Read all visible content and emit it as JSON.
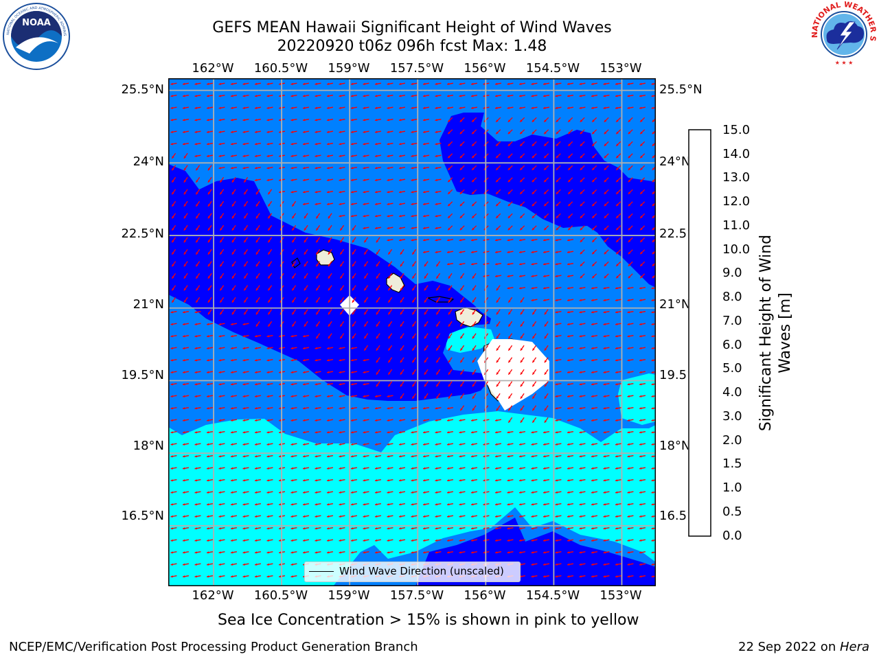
{
  "header": {
    "title_line1": "GEFS MEAN Hawaii Significant Height of Wind Waves",
    "title_line2": "20220920 t06z 096h fcst   Max: 1.48"
  },
  "logos": {
    "left_name": "NOAA",
    "left_ring_text": "NATIONAL OCEANIC AND ATMOSPHERIC ADMINISTRATION · U.S. DEPARTMENT OF COMMERCE",
    "right_ring_text": "NATIONAL WEATHER SERVICE"
  },
  "map": {
    "lon_ticks": [
      "162°W",
      "160.5°W",
      "159°W",
      "157.5°W",
      "156°W",
      "154.5°W",
      "153°W"
    ],
    "lat_ticks": [
      "25.5°N",
      "24°N",
      "22.5°N",
      "21°N",
      "19.5°N",
      "18°N",
      "16.5°N"
    ],
    "lat_ticks_right": [
      "25.5°N",
      "24°N",
      "22.5°N",
      "21°N",
      "19.5°N",
      "18°N",
      "16.5°N"
    ],
    "lon_range": [
      -163,
      -152.25
    ],
    "lat_range": [
      15.25,
      25.75
    ],
    "vector_color": "#ff0000",
    "legend_label": "Wind Wave Direction (unscaled)"
  },
  "colorbar": {
    "label_line1": "Significant Height of Wind",
    "label_line2": "Waves [m]",
    "ticks": [
      "15.0",
      "14.0",
      "13.0",
      "12.0",
      "11.0",
      "10.0",
      "9.0",
      "8.0",
      "7.0",
      "6.0",
      "5.0",
      "4.0",
      "3.0",
      "2.0",
      "1.5",
      "1.0",
      "0.5",
      "0.0"
    ],
    "colors": [
      "#0000ff",
      "#0080ff",
      "#00ffff",
      "#40ffff",
      "#a0ffff",
      "#40ff80",
      "#00ff00",
      "#80ff00",
      "#c0ff00",
      "#ffff00",
      "#ffdd00",
      "#ffb000",
      "#ff8800",
      "#ff5500",
      "#ff2200",
      "#ff0000"
    ],
    "land_color": "#efedda"
  },
  "footer": {
    "ice_note": "Sea Ice Concentration > 15% is shown in pink to yellow",
    "branch": "NCEP/EMC/Verification Post Processing Product Generation Branch",
    "date_prefix": "22 Sep 2022 on ",
    "date_host": "Hera"
  }
}
